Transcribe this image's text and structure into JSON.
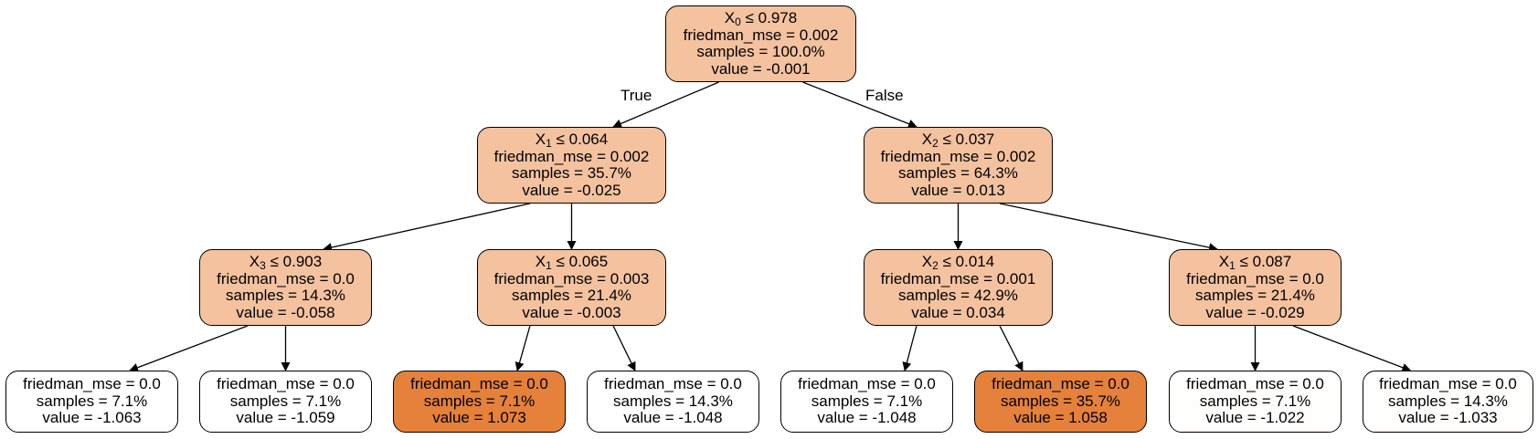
{
  "labels": {
    "true": "True",
    "false": "False"
  },
  "nodes": [
    {
      "id": "n0",
      "feat": "X",
      "idx": "0",
      "op": "≤",
      "thr": "0.978",
      "mse": "friedman_mse = 0.002",
      "samples": "samples = 100.0%",
      "value": "value = -0.001",
      "fill": "#f4c29f"
    },
    {
      "id": "n1",
      "feat": "X",
      "idx": "1",
      "op": "≤",
      "thr": "0.064",
      "mse": "friedman_mse = 0.002",
      "samples": "samples = 35.7%",
      "value": "value = -0.025",
      "fill": "#f4c29f"
    },
    {
      "id": "n2",
      "feat": "X",
      "idx": "2",
      "op": "≤",
      "thr": "0.037",
      "mse": "friedman_mse = 0.002",
      "samples": "samples = 64.3%",
      "value": "value = 0.013",
      "fill": "#f4c29f"
    },
    {
      "id": "n3",
      "feat": "X",
      "idx": "3",
      "op": "≤",
      "thr": "0.903",
      "mse": "friedman_mse = 0.0",
      "samples": "samples = 14.3%",
      "value": "value = -0.058",
      "fill": "#f4c29f"
    },
    {
      "id": "n4",
      "feat": "X",
      "idx": "1",
      "op": "≤",
      "thr": "0.065",
      "mse": "friedman_mse = 0.003",
      "samples": "samples = 21.4%",
      "value": "value = -0.003",
      "fill": "#f4c29f"
    },
    {
      "id": "n5",
      "feat": "X",
      "idx": "2",
      "op": "≤",
      "thr": "0.014",
      "mse": "friedman_mse = 0.001",
      "samples": "samples = 42.9%",
      "value": "value = 0.034",
      "fill": "#f4c29f"
    },
    {
      "id": "n6",
      "feat": "X",
      "idx": "1",
      "op": "≤",
      "thr": "0.087",
      "mse": "friedman_mse = 0.0",
      "samples": "samples = 21.4%",
      "value": "value = -0.029",
      "fill": "#f4c29f"
    },
    {
      "id": "n7",
      "mse": "friedman_mse = 0.0",
      "samples": "samples = 7.1%",
      "value": "value = -1.063",
      "fill": "#ffffff"
    },
    {
      "id": "n8",
      "mse": "friedman_mse = 0.0",
      "samples": "samples = 7.1%",
      "value": "value = -1.059",
      "fill": "#ffffff"
    },
    {
      "id": "n9",
      "mse": "friedman_mse = 0.0",
      "samples": "samples = 7.1%",
      "value": "value = 1.073",
      "fill": "#e5813a"
    },
    {
      "id": "n10",
      "mse": "friedman_mse = 0.0",
      "samples": "samples = 14.3%",
      "value": "value = -1.048",
      "fill": "#ffffff"
    },
    {
      "id": "n11",
      "mse": "friedman_mse = 0.0",
      "samples": "samples = 7.1%",
      "value": "value = -1.048",
      "fill": "#ffffff"
    },
    {
      "id": "n12",
      "mse": "friedman_mse = 0.0",
      "samples": "samples = 35.7%",
      "value": "value = 1.058",
      "fill": "#e5813a"
    },
    {
      "id": "n13",
      "mse": "friedman_mse = 0.0",
      "samples": "samples = 7.1%",
      "value": "value = -1.022",
      "fill": "#fffefd"
    },
    {
      "id": "n14",
      "mse": "friedman_mse = 0.0",
      "samples": "samples = 14.3%",
      "value": "value = -1.033",
      "fill": "#fffefd"
    }
  ],
  "edges": [
    [
      "n0",
      "n1"
    ],
    [
      "n0",
      "n2"
    ],
    [
      "n1",
      "n3"
    ],
    [
      "n1",
      "n4"
    ],
    [
      "n2",
      "n5"
    ],
    [
      "n2",
      "n6"
    ],
    [
      "n3",
      "n7"
    ],
    [
      "n3",
      "n8"
    ],
    [
      "n4",
      "n9"
    ],
    [
      "n4",
      "n10"
    ],
    [
      "n5",
      "n11"
    ],
    [
      "n5",
      "n12"
    ],
    [
      "n6",
      "n13"
    ],
    [
      "n6",
      "n14"
    ]
  ]
}
